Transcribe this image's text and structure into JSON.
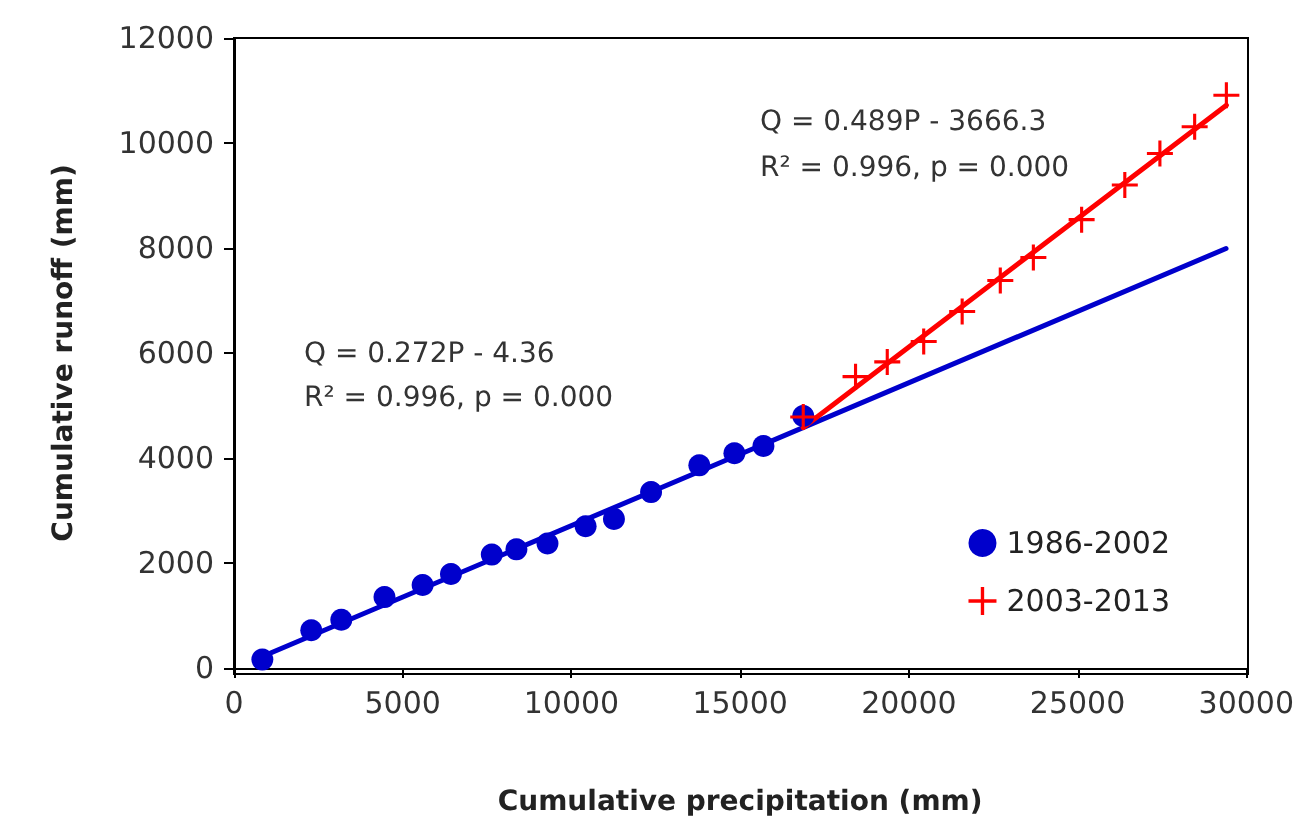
{
  "chart_data": {
    "type": "scatter",
    "xlabel": "Cumulative precipitation (mm)",
    "ylabel": "Cumulative runoff (mm)",
    "xlim": [
      0,
      30000
    ],
    "xticks": [
      0,
      5000,
      10000,
      15000,
      20000,
      25000,
      30000
    ],
    "ylim": [
      0,
      12000
    ],
    "yticks": [
      0,
      2000,
      4000,
      6000,
      8000,
      10000,
      12000
    ],
    "grid": false,
    "legend": "bottom right",
    "annotations": [
      "Q = 0.272P - 4.36",
      "R² = 0.996, p = 0.000",
      "Q = 0.489P - 3666.3",
      "R² = 0.996, p = 0.000"
    ],
    "series": [
      {
        "name": "1986-2002",
        "color": "#0000cc",
        "marker": "circle",
        "x": [
          840,
          2290,
          3180,
          4460,
          5590,
          6430,
          7640,
          8370,
          9290,
          10420,
          11260,
          12360,
          13790,
          14830,
          15690,
          16870
        ],
        "values": [
          160,
          720,
          920,
          1350,
          1580,
          1790,
          2160,
          2260,
          2370,
          2700,
          2840,
          3350,
          3860,
          4090,
          4230,
          4800
        ]
      },
      {
        "name": "2003-2013",
        "color": "#ff0000",
        "marker": "cross",
        "x": [
          16870,
          18420,
          19360,
          20440,
          21580,
          22710,
          23690,
          25120,
          26400,
          27440,
          28470,
          29410
        ],
        "values": [
          4780,
          5550,
          5830,
          6220,
          6790,
          7380,
          7820,
          8540,
          9200,
          9800,
          10310,
          10910
        ]
      },
      {
        "color": "#0000cc",
        "type": "line",
        "marker": "none",
        "x": [
          840,
          29400
        ],
        "values": [
          220,
          7990
        ]
      },
      {
        "color": "#ff0000",
        "type": "line",
        "marker": "none",
        "x": [
          16870,
          29410
        ],
        "values": [
          4580,
          10720
        ]
      }
    ]
  }
}
